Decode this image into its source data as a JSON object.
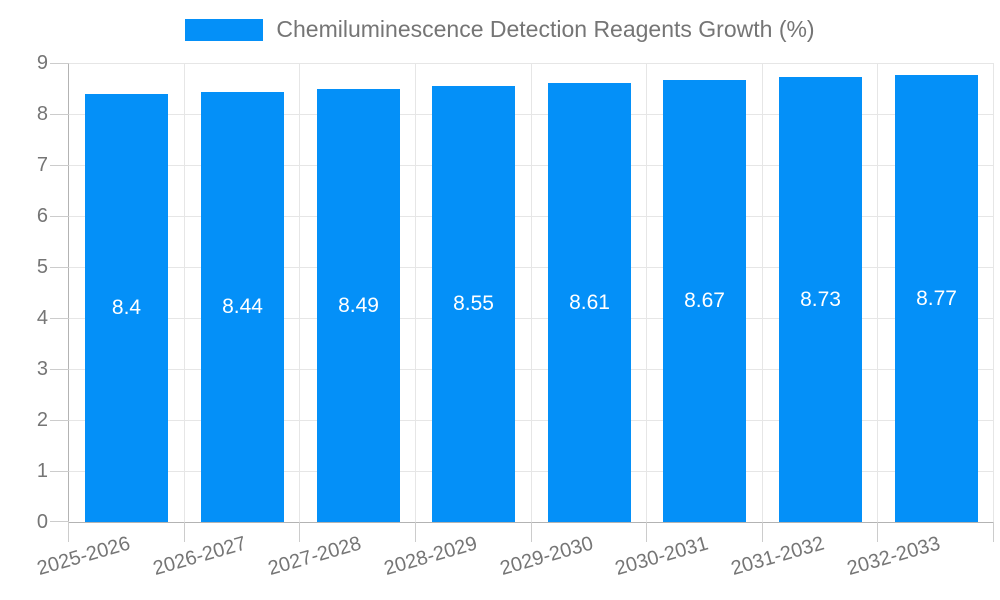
{
  "chart_data": {
    "type": "bar",
    "title": "Chemiluminescence Detection Reagents Growth (%)",
    "legend": [
      "Chemiluminescence Detection Reagents Growth (%)"
    ],
    "legend_position": "top",
    "categories": [
      "2025-2026",
      "2026-2027",
      "2027-2028",
      "2028-2029",
      "2029-2030",
      "2030-2031",
      "2031-2032",
      "2032-2033"
    ],
    "series": [
      {
        "name": "Chemiluminescence Detection Reagents Growth (%)",
        "values": [
          8.4,
          8.44,
          8.49,
          8.55,
          8.61,
          8.67,
          8.73,
          8.77
        ]
      }
    ],
    "value_labels": [
      "8.4",
      "8.44",
      "8.49",
      "8.55",
      "8.61",
      "8.67",
      "8.73",
      "8.77"
    ],
    "xlabel": "",
    "ylabel": "",
    "ylim": [
      0,
      9
    ],
    "yticks": [
      0,
      1,
      2,
      3,
      4,
      5,
      6,
      7,
      8,
      9
    ],
    "grid": true,
    "x_label_rotation_deg": -16,
    "colors": {
      "bar": "#0490f8",
      "bar_value_text": "#ffffff",
      "axis_text": "#757575",
      "legend_text": "#757575",
      "gridline": "#e6e6e6",
      "axis_line": "#b3b3b3",
      "tick": "#cccccc"
    }
  }
}
